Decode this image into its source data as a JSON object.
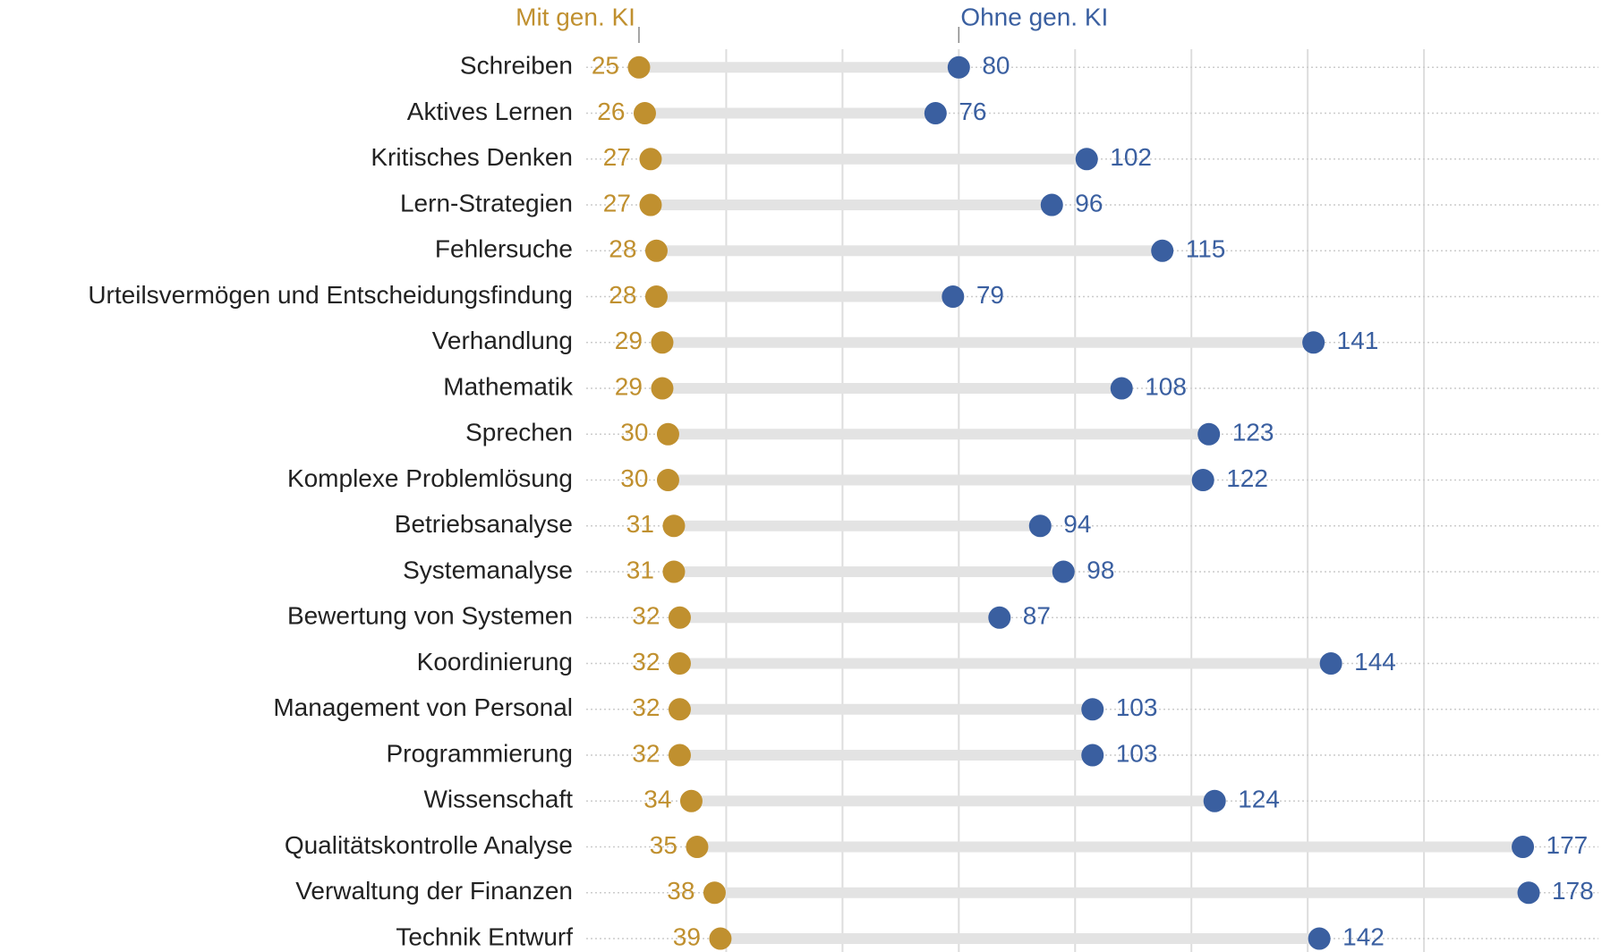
{
  "chart_data": {
    "type": "dumbbell",
    "categories": [
      "Schreiben",
      "Aktives Lernen",
      "Kritisches Denken",
      "Lern-Strategien",
      "Fehlersuche",
      "Urteilsvermögen und Entscheidungsfindung",
      "Verhandlung",
      "Mathematik",
      "Sprechen",
      "Komplexe Problemlösung",
      "Betriebsanalyse",
      "Systemanalyse",
      "Bewertung von Systemen",
      "Koordinierung",
      "Management von Personal",
      "Programmierung",
      "Wissenschaft",
      "Qualitätskontrolle Analyse",
      "Verwaltung der Finanzen",
      "Technik Entwurf"
    ],
    "series": [
      {
        "name": "Mit gen. KI",
        "color": "#c0902f",
        "values": [
          25,
          26,
          27,
          27,
          28,
          28,
          29,
          29,
          30,
          30,
          31,
          31,
          32,
          32,
          32,
          32,
          34,
          35,
          38,
          39
        ]
      },
      {
        "name": "Ohne gen. KI",
        "color": "#3a5fa0",
        "values": [
          80,
          76,
          102,
          96,
          115,
          79,
          141,
          108,
          123,
          122,
          94,
          98,
          87,
          144,
          103,
          103,
          124,
          177,
          178,
          142
        ]
      }
    ],
    "xlim": [
      15,
      190
    ],
    "xticks": [
      40,
      60,
      80,
      100,
      120,
      140,
      160
    ],
    "grid": true
  }
}
